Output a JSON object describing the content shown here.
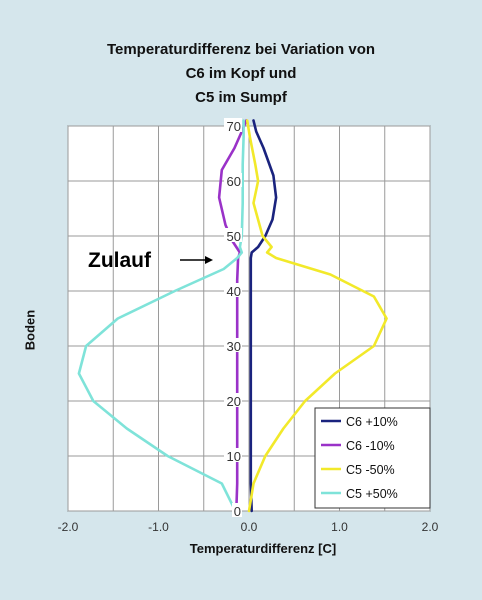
{
  "chart_data": {
    "type": "line",
    "title_lines": [
      "Temperaturdifferenz bei Variation von",
      "C6 im Kopf und",
      "C5 im Sumpf"
    ],
    "xlabel": "Temperaturdifferenz [C]",
    "ylabel": "Boden",
    "xlim": [
      -2.0,
      2.0
    ],
    "ylim": [
      0,
      70
    ],
    "x_ticks": [
      "-2.0",
      "-1.0",
      "0.0",
      "1.0",
      "2.0"
    ],
    "y_ticks": [
      "0",
      "10",
      "20",
      "30",
      "40",
      "50",
      "60",
      "70"
    ],
    "grid": true,
    "legend_position": "bottom-right",
    "annotation": "Zulauf",
    "series": [
      {
        "name": "C6 +10%",
        "color": "#1a237e",
        "points": [
          [
            0.03,
            0
          ],
          [
            0.02,
            5
          ],
          [
            0.02,
            15
          ],
          [
            0.02,
            25
          ],
          [
            0.02,
            35
          ],
          [
            0.02,
            42
          ],
          [
            0.02,
            46
          ],
          [
            0.03,
            47
          ],
          [
            0.1,
            48
          ],
          [
            0.18,
            50
          ],
          [
            0.26,
            53
          ],
          [
            0.3,
            57
          ],
          [
            0.27,
            61
          ],
          [
            0.16,
            66
          ],
          [
            0.08,
            69
          ],
          [
            0.05,
            71
          ]
        ]
      },
      {
        "name": "C6 -10%",
        "color": "#9a32c8",
        "points": [
          [
            -0.14,
            0
          ],
          [
            -0.13,
            5
          ],
          [
            -0.13,
            15
          ],
          [
            -0.13,
            25
          ],
          [
            -0.13,
            35
          ],
          [
            -0.13,
            42
          ],
          [
            -0.12,
            46
          ],
          [
            -0.1,
            47
          ],
          [
            -0.18,
            49
          ],
          [
            -0.26,
            52
          ],
          [
            -0.33,
            57
          ],
          [
            -0.3,
            62
          ],
          [
            -0.16,
            66
          ],
          [
            -0.08,
            69
          ],
          [
            -0.03,
            71
          ]
        ]
      },
      {
        "name": "C5 -50%",
        "color": "#f2e92a",
        "points": [
          [
            0.0,
            0
          ],
          [
            0.05,
            5
          ],
          [
            0.18,
            10
          ],
          [
            0.38,
            15
          ],
          [
            0.62,
            20
          ],
          [
            0.95,
            25
          ],
          [
            1.38,
            30
          ],
          [
            1.52,
            35
          ],
          [
            1.38,
            39
          ],
          [
            0.9,
            43
          ],
          [
            0.3,
            46
          ],
          [
            0.2,
            47
          ],
          [
            0.25,
            48
          ],
          [
            0.15,
            50
          ],
          [
            0.05,
            56
          ],
          [
            0.1,
            60
          ],
          [
            0.07,
            63
          ],
          [
            0.01,
            68
          ],
          [
            -0.02,
            71
          ]
        ]
      },
      {
        "name": "C5 +50%",
        "color": "#7fe3d9",
        "points": [
          [
            -0.15,
            0
          ],
          [
            -0.3,
            5
          ],
          [
            -0.9,
            10
          ],
          [
            -1.35,
            15
          ],
          [
            -1.72,
            20
          ],
          [
            -1.88,
            25
          ],
          [
            -1.8,
            30
          ],
          [
            -1.45,
            35
          ],
          [
            -0.82,
            40
          ],
          [
            -0.28,
            44
          ],
          [
            -0.13,
            46
          ],
          [
            -0.08,
            47
          ],
          [
            -0.1,
            48
          ],
          [
            -0.08,
            50
          ],
          [
            -0.07,
            56
          ],
          [
            -0.07,
            63
          ],
          [
            -0.06,
            68
          ],
          [
            -0.06,
            71
          ]
        ]
      }
    ]
  }
}
